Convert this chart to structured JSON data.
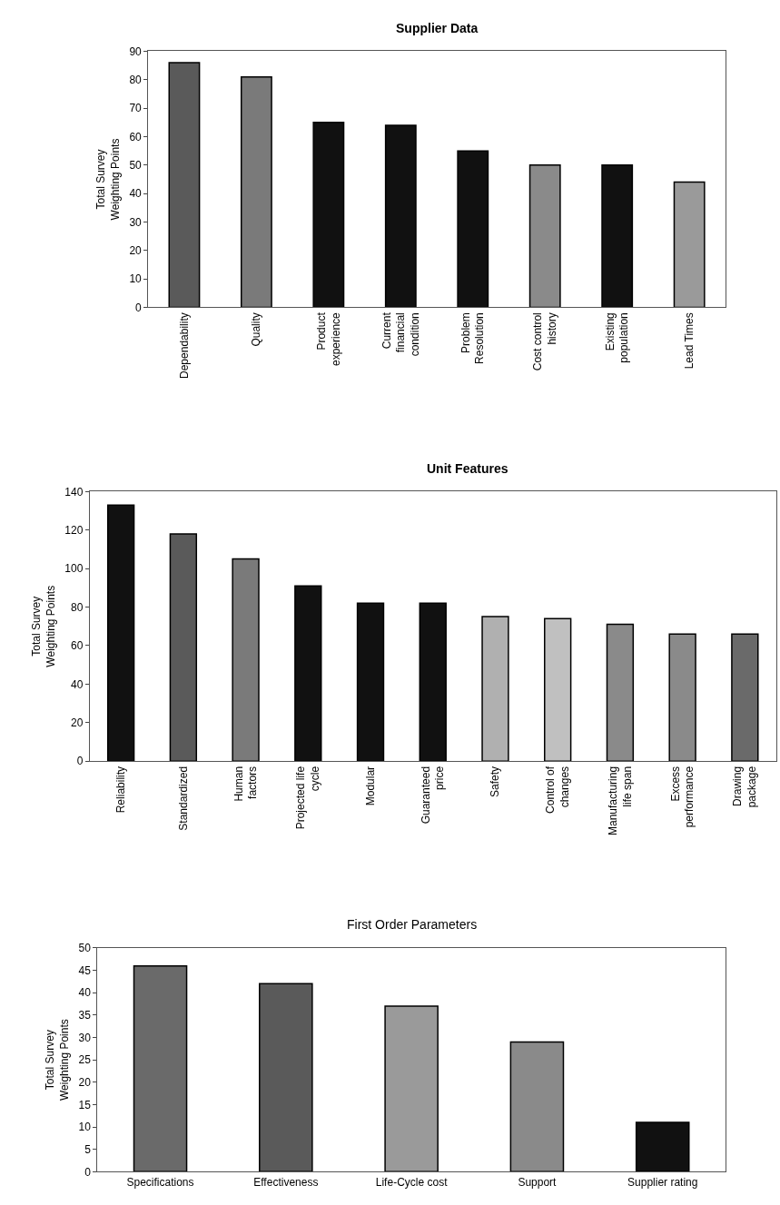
{
  "chart_data": [
    {
      "type": "bar",
      "title": "Supplier Data",
      "ylabel": "Total Survey\nWeighting Points",
      "categories": [
        "Dependability",
        "Quality",
        "Product\nexperience",
        "Current\nfinancial\ncondition",
        "Problem\nResolution",
        "Cost control\nhistory",
        "Existing\npopulation",
        "Lead Times"
      ],
      "values": [
        86,
        81,
        65,
        64,
        55,
        50,
        50,
        44
      ],
      "colors": [
        "#5a5a5a",
        "#7a7a7a",
        "#111111",
        "#111111",
        "#111111",
        "#8a8a8a",
        "#111111",
        "#9a9a9a"
      ],
      "ylim": [
        0,
        90
      ],
      "yticks": [
        0,
        10,
        20,
        30,
        40,
        50,
        60,
        70,
        80,
        90
      ]
    },
    {
      "type": "bar",
      "title": "Unit Features",
      "ylabel": "Total Survey\nWeighting Points",
      "categories": [
        "Reliability",
        "Standardized",
        "Human\nfactors",
        "Projected life\ncycle",
        "Modular",
        "Guaranteed\nprice",
        "Safety",
        "Control of\nchanges",
        "Manufacturing\nlife span",
        "Excess\nperformance",
        "Drawing\npackage"
      ],
      "values": [
        133,
        118,
        105,
        91,
        82,
        82,
        75,
        74,
        71,
        66,
        66
      ],
      "colors": [
        "#111111",
        "#5a5a5a",
        "#7a7a7a",
        "#111111",
        "#111111",
        "#111111",
        "#b0b0b0",
        "#c0c0c0",
        "#8a8a8a",
        "#8a8a8a",
        "#6a6a6a"
      ],
      "ylim": [
        0,
        140
      ],
      "yticks": [
        0,
        20,
        40,
        60,
        80,
        100,
        120,
        140
      ]
    },
    {
      "type": "bar",
      "title": "First Order Parameters",
      "ylabel": "Total Survey\nWeighting Points",
      "categories": [
        "Specifications",
        "Effectiveness",
        "Life-Cycle cost",
        "Support",
        "Supplier rating"
      ],
      "values": [
        46,
        42,
        37,
        29,
        11
      ],
      "colors": [
        "#6a6a6a",
        "#5a5a5a",
        "#9a9a9a",
        "#8a8a8a",
        "#111111"
      ],
      "ylim": [
        0,
        50
      ],
      "yticks": [
        0,
        5,
        10,
        15,
        20,
        25,
        30,
        35,
        40,
        45,
        50
      ]
    }
  ]
}
